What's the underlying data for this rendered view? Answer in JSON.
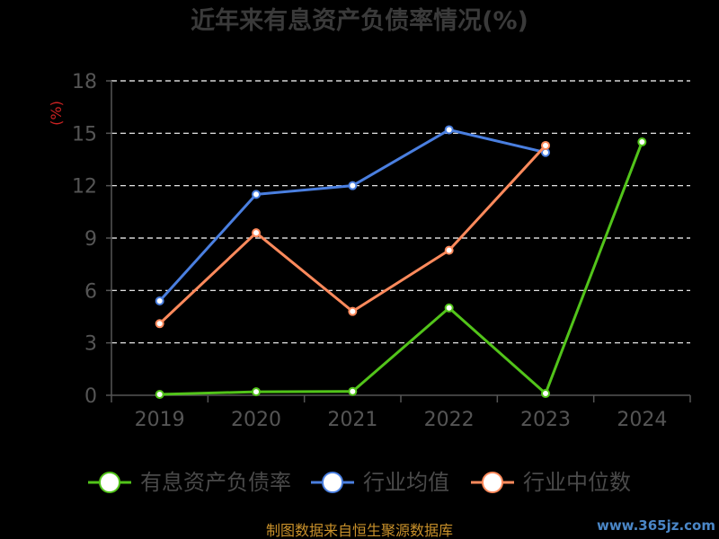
{
  "chart_data": {
    "type": "line",
    "title": "近年来有息资产负债率情况(%)",
    "ylabel": "(%)",
    "xlabel": "",
    "categories": [
      "2019",
      "2020",
      "2021",
      "2022",
      "2023",
      "2024"
    ],
    "ylim": [
      0,
      18
    ],
    "yticks": [
      "0",
      "3",
      "6",
      "9",
      "12",
      "15",
      "18"
    ],
    "grid": true,
    "legend_position": "bottom",
    "series": [
      {
        "name": "有息资产负债率",
        "color": "#52c41a",
        "values": [
          0.05,
          0.2,
          0.22,
          5.0,
          0.1,
          14.5
        ]
      },
      {
        "name": "行业均值",
        "color": "#4a7fe0",
        "values": [
          5.4,
          11.5,
          12.0,
          15.2,
          13.9,
          null
        ]
      },
      {
        "name": "行业中位数",
        "color": "#ff8a5c",
        "values": [
          4.1,
          9.3,
          4.8,
          8.3,
          14.3,
          null
        ]
      }
    ]
  },
  "footer": {
    "source": "制图数据来自恒生聚源数据库",
    "watermark": "www.365jz.com"
  }
}
